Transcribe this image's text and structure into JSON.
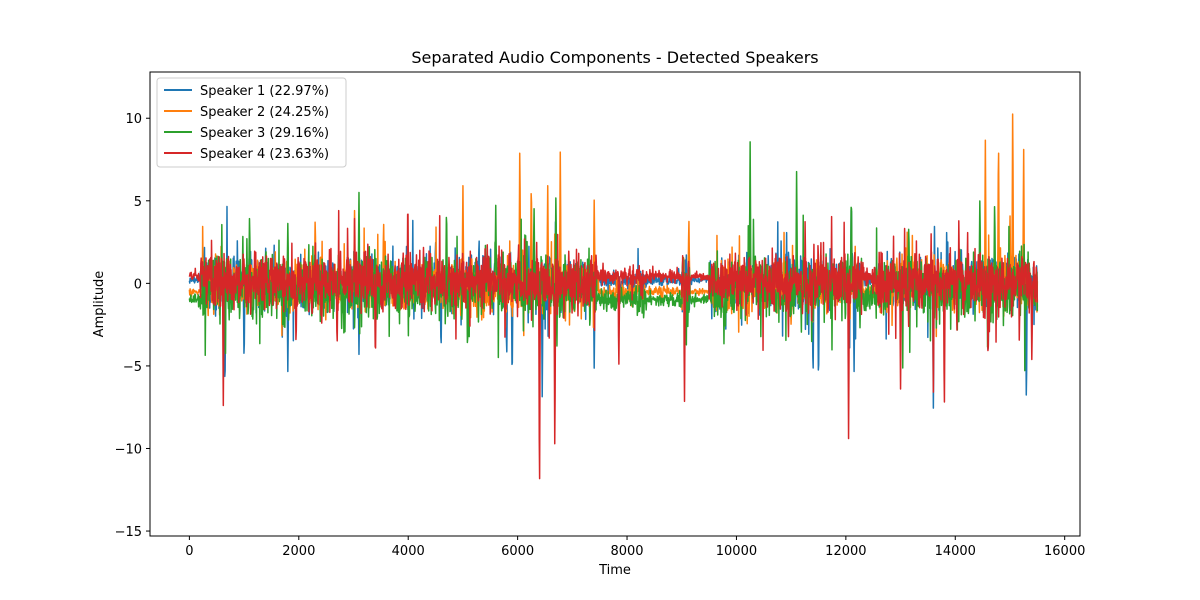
{
  "chart_data": {
    "type": "line",
    "title": "Separated Audio Components - Detected Speakers",
    "xlabel": "Time",
    "ylabel": "Amplitude",
    "xlim": [
      -720,
      16280
    ],
    "ylim": [
      -15.3,
      12.8
    ],
    "x_ticks": [
      0,
      2000,
      4000,
      6000,
      8000,
      10000,
      12000,
      14000,
      16000
    ],
    "y_ticks": [
      -15,
      -10,
      -5,
      0,
      5,
      10
    ],
    "y_tick_labels": [
      "−15",
      "−10",
      "−5",
      "0",
      "5",
      "10"
    ],
    "grid": false,
    "legend_position": "top-left",
    "x_start": 0,
    "x_end": 15500,
    "series": [
      {
        "name": "Speaker 1 (22.97%)",
        "color": "#1f77b4",
        "baseline": 0.2,
        "noise": 1.1,
        "peaks": [
          [
            650,
            -7.2
          ],
          [
            1000,
            -5.2
          ],
          [
            1800,
            -5.6
          ],
          [
            3100,
            -4.3
          ],
          [
            4600,
            -4.5
          ],
          [
            5800,
            -5.0
          ],
          [
            5900,
            -6.4
          ],
          [
            6450,
            -7.2
          ],
          [
            7400,
            -5.3
          ],
          [
            11400,
            -6.3
          ],
          [
            11500,
            -6.7
          ],
          [
            12150,
            -5.6
          ],
          [
            12100,
            5.8
          ],
          [
            13600,
            -7.8
          ],
          [
            15300,
            -8.0
          ],
          [
            14600,
            -5.1
          ]
        ]
      },
      {
        "name": "Speaker 2 (24.25%)",
        "color": "#ff7f0e",
        "baseline": -0.5,
        "noise": 1.0,
        "peaks": [
          [
            2300,
            4.3
          ],
          [
            3020,
            4.7
          ],
          [
            3550,
            4.0
          ],
          [
            5000,
            6.1
          ],
          [
            6040,
            9.0
          ],
          [
            6250,
            6.8
          ],
          [
            6550,
            6.1
          ],
          [
            6780,
            8.2
          ],
          [
            7400,
            5.2
          ],
          [
            9130,
            4.2
          ],
          [
            14550,
            8.8
          ],
          [
            14790,
            9.5
          ],
          [
            15050,
            11.5
          ],
          [
            15250,
            8.5
          ],
          [
            15000,
            4.5
          ]
        ]
      },
      {
        "name": "Speaker 3 (29.16%)",
        "color": "#2ca02c",
        "baseline": -1.0,
        "noise": 1.3,
        "peaks": [
          [
            1100,
            4.4
          ],
          [
            1800,
            3.8
          ],
          [
            3100,
            5.5
          ],
          [
            4700,
            5.0
          ],
          [
            5600,
            4.8
          ],
          [
            6300,
            4.9
          ],
          [
            6700,
            5.7
          ],
          [
            10250,
            8.7
          ],
          [
            11100,
            7.1
          ],
          [
            12100,
            6.0
          ],
          [
            13150,
            3.8
          ],
          [
            14450,
            5.5
          ],
          [
            14720,
            5.3
          ]
        ]
      },
      {
        "name": "Speaker 4 (23.63%)",
        "color": "#d62728",
        "baseline": 0.4,
        "noise": 1.2,
        "peaks": [
          [
            620,
            -7.4
          ],
          [
            1950,
            -4.1
          ],
          [
            2700,
            -4.2
          ],
          [
            3400,
            -5.1
          ],
          [
            6400,
            -14.0
          ],
          [
            6680,
            -10.9
          ],
          [
            7850,
            -5.3
          ],
          [
            9050,
            -7.5
          ],
          [
            12050,
            -9.7
          ],
          [
            13000,
            -6.5
          ],
          [
            13800,
            -8.2
          ],
          [
            13600,
            -6.8
          ],
          [
            14600,
            -5.2
          ],
          [
            15400,
            -5.0
          ],
          [
            10950,
            -3.5
          ]
        ]
      }
    ]
  }
}
